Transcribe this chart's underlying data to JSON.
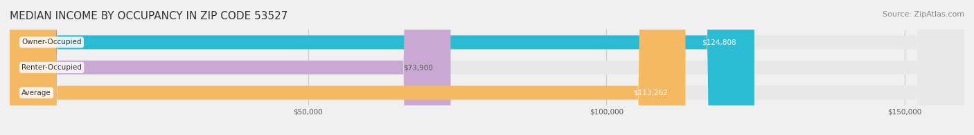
{
  "title": "MEDIAN INCOME BY OCCUPANCY IN ZIP CODE 53527",
  "source": "Source: ZipAtlas.com",
  "categories": [
    "Owner-Occupied",
    "Renter-Occupied",
    "Average"
  ],
  "values": [
    124808,
    73900,
    113262
  ],
  "bar_colors": [
    "#2bbcd4",
    "#c9a8d4",
    "#f5b963"
  ],
  "label_colors": [
    "#ffffff",
    "#555555",
    "#ffffff"
  ],
  "value_labels": [
    "$124,808",
    "$73,900",
    "$113,262"
  ],
  "xlim": [
    0,
    160000
  ],
  "xticks": [
    0,
    50000,
    100000,
    150000
  ],
  "xtick_labels": [
    "$50,000",
    "$100,000",
    "$150,000"
  ],
  "background_color": "#f0f0f0",
  "bar_background_color": "#e8e8e8",
  "title_fontsize": 11,
  "source_fontsize": 8,
  "bar_height": 0.55
}
